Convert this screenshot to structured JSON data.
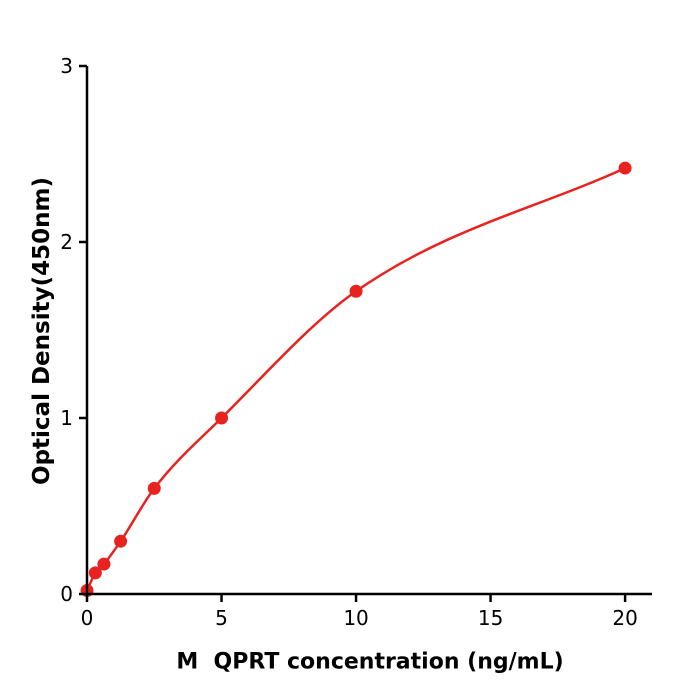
{
  "chart_data": {
    "type": "line",
    "title": "",
    "xlabel": "M  QPRT concentration (ng/mL)",
    "ylabel": "Optical Density(450nm)",
    "x": [
      0,
      0.31,
      0.63,
      1.25,
      2.5,
      5,
      10,
      20
    ],
    "y": [
      0.02,
      0.12,
      0.17,
      0.3,
      0.6,
      1.0,
      1.72,
      2.42
    ],
    "xticks": [
      0,
      5,
      10,
      15,
      20
    ],
    "yticks": [
      0,
      1,
      2,
      3
    ],
    "xlim": [
      0,
      21
    ],
    "ylim": [
      0,
      3
    ],
    "grid": false,
    "legend": "none",
    "line_color": "#e8231f",
    "point_color": "#e8231f",
    "axis_color": "#000000",
    "marker": "circle",
    "marker_radius": 6.5
  }
}
